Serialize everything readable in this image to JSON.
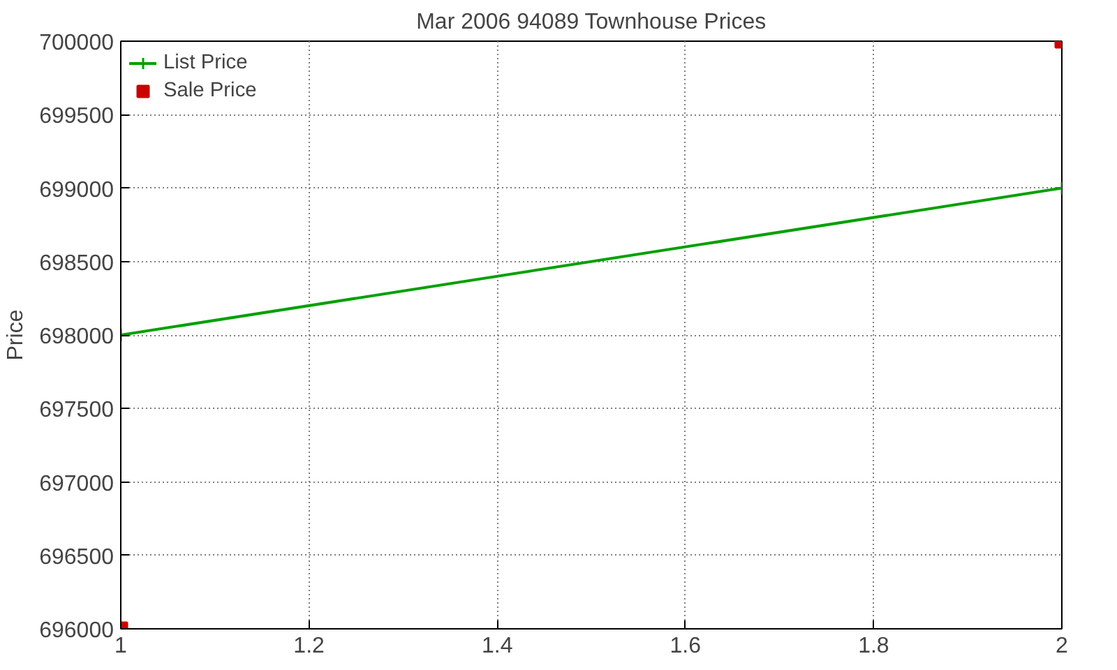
{
  "chart_data": {
    "type": "line",
    "title": "Mar 2006 94089 Townhouse Prices",
    "ylabel": "Price",
    "x": [
      1,
      2
    ],
    "series": [
      {
        "name": "List Price",
        "color": "#00a000",
        "marker": "cross",
        "values": [
          698000,
          699000
        ]
      },
      {
        "name": "Sale Price",
        "color": "#cc0000",
        "type": "scatter",
        "marker": "square",
        "values": [
          696000,
          700000
        ]
      }
    ],
    "xlim": [
      1,
      2
    ],
    "xticks": [
      1,
      1.2,
      1.4,
      1.6,
      1.8,
      2
    ],
    "ylim": [
      696000,
      700000
    ],
    "yticks": [
      696000,
      696500,
      697000,
      697500,
      698000,
      698500,
      699000,
      699500,
      700000
    ],
    "grid": true,
    "legend": "top left"
  }
}
